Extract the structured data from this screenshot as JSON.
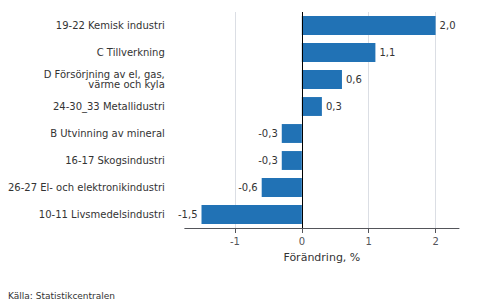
{
  "chart_data": {
    "type": "bar",
    "orientation": "horizontal",
    "categories": [
      "10-11 Livsmedelsindustri",
      "26-27 El- och elektronikindustri",
      "16-17 Skogsindustri",
      "B Utvinning av mineral",
      "24-30_33 Metallidustri",
      "D Försörjning av el, gas,\nvärme och kyla",
      "C Tillverkning",
      "19-22 Kemisk industri"
    ],
    "values": [
      -1.5,
      -0.6,
      -0.3,
      -0.3,
      0.3,
      0.6,
      1.1,
      2.0
    ],
    "value_labels": [
      "-1,5",
      "-0,6",
      "-0,3",
      "-0,3",
      "0,3",
      "0,6",
      "1,1",
      "2,0"
    ],
    "data_labels": true,
    "color": "#2172b5",
    "xlabel": "Förändring, %",
    "xlim": [
      -1.75,
      2.35
    ],
    "xticks": [
      -1,
      0,
      1,
      2
    ],
    "grid": true,
    "annotations": [
      "Källa: Statistikcentralen"
    ]
  }
}
